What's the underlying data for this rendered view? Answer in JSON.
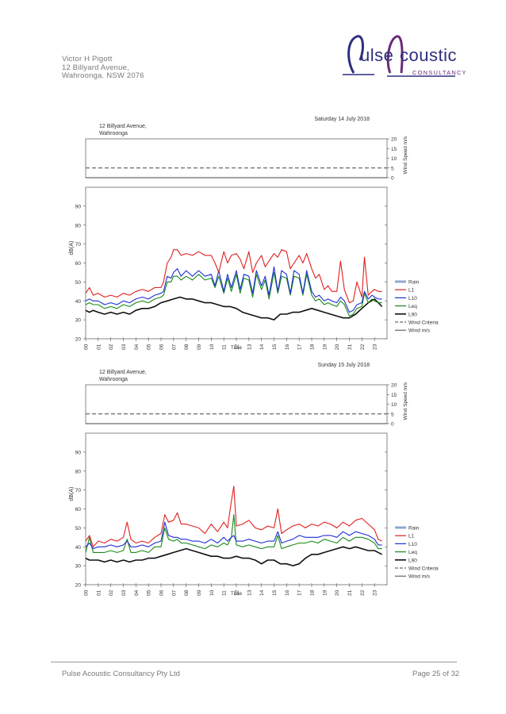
{
  "header": {
    "address_lines": [
      "Victor H Pigott",
      "12 Billyard Avenue,",
      "Wahroonga. NSW 2076"
    ],
    "logo_word1": "ulse",
    "logo_word2": "coustic",
    "logo_sub": "CONSULTANCY"
  },
  "footer": {
    "company": "Pulse Acoustic Consultancy Pty Ltd",
    "page": "Page 25 of 32"
  },
  "colors": {
    "rain": "#8fa8d0",
    "l1": "#e02020",
    "l10": "#1f2fd8",
    "leq": "#1a8a1a",
    "l90": "#111111",
    "wind_criteria": "#444444",
    "wind": "#444444"
  },
  "chart_data": [
    {
      "type": "line",
      "title": "Saturday 14 July 2018",
      "location": [
        "12 Billyard Avenue,",
        "Wahroonga"
      ],
      "xlabel": "Time",
      "ylabel": "dB(A)",
      "y2label": "Wind Speed m/s",
      "ylim": [
        20,
        100
      ],
      "yticks": [
        20,
        30,
        40,
        50,
        60,
        70,
        80,
        90
      ],
      "y2lim": [
        0,
        20
      ],
      "y2ticks": [
        0,
        5,
        10,
        15,
        20
      ],
      "xticks": [
        "00",
        "01",
        "02",
        "03",
        "04",
        "05",
        "06",
        "07",
        "08",
        "09",
        "10",
        "11",
        "12",
        "13",
        "14",
        "15",
        "16",
        "17",
        "18",
        "19",
        "20",
        "21",
        "22",
        "23"
      ],
      "wind_criteria": 5,
      "wind": 0,
      "legend": [
        "Rain",
        "L1",
        "L10",
        "Leq",
        "L90",
        "Wind Criteria",
        "Wind m/s"
      ],
      "series": [
        {
          "name": "L1",
          "x": [
            0,
            0.3,
            0.6,
            1,
            1.5,
            2,
            2.5,
            3,
            3.5,
            4,
            4.5,
            5,
            5.5,
            6,
            6.2,
            6.5,
            6.8,
            7,
            7.3,
            7.6,
            8,
            8.5,
            9,
            9.5,
            10,
            10.3,
            10.6,
            11,
            11.3,
            11.6,
            12,
            12.3,
            12.6,
            13,
            13.3,
            13.6,
            14,
            14.3,
            14.6,
            15,
            15.3,
            15.6,
            16,
            16.3,
            16.6,
            17,
            17.3,
            17.6,
            18,
            18.3,
            18.6,
            19,
            19.3,
            19.6,
            20,
            20.3,
            20.6,
            21,
            21.3,
            21.6,
            22,
            22.2,
            22.5,
            22.8,
            23,
            23.3,
            23.6
          ],
          "values": [
            44,
            47,
            43,
            44,
            42,
            43,
            42,
            44,
            43,
            45,
            46,
            45,
            47,
            47,
            50,
            60,
            63,
            67,
            67,
            64,
            65,
            64,
            66,
            64,
            64,
            60,
            55,
            66,
            60,
            64,
            65,
            62,
            57,
            66,
            55,
            60,
            64,
            58,
            61,
            65,
            63,
            67,
            66,
            57,
            60,
            64,
            60,
            65,
            57,
            52,
            54,
            46,
            48,
            45,
            45,
            61,
            46,
            39,
            40,
            50,
            42,
            63,
            43,
            45,
            46,
            45,
            45
          ]
        },
        {
          "name": "L10",
          "x": [
            0,
            0.3,
            0.6,
            1,
            1.5,
            2,
            2.5,
            3,
            3.5,
            4,
            4.5,
            5,
            5.5,
            6,
            6.2,
            6.5,
            6.8,
            7,
            7.3,
            7.6,
            8,
            8.5,
            9,
            9.5,
            10,
            10.3,
            10.6,
            11,
            11.3,
            11.6,
            12,
            12.3,
            12.6,
            13,
            13.3,
            13.6,
            14,
            14.3,
            14.6,
            15,
            15.3,
            15.6,
            16,
            16.3,
            16.6,
            17,
            17.3,
            17.6,
            18,
            18.3,
            18.6,
            19,
            19.3,
            19.6,
            20,
            20.3,
            20.6,
            21,
            21.3,
            21.6,
            22,
            22.2,
            22.5,
            22.8,
            23,
            23.3,
            23.6
          ],
          "values": [
            40,
            41,
            40,
            40,
            38,
            39,
            38,
            40,
            39,
            41,
            42,
            41,
            43,
            44,
            45,
            53,
            52,
            55,
            57,
            53,
            56,
            53,
            56,
            53,
            54,
            48,
            56,
            45,
            54,
            47,
            56,
            46,
            54,
            53,
            44,
            56,
            48,
            53,
            43,
            58,
            45,
            56,
            54,
            44,
            56,
            54,
            44,
            56,
            45,
            42,
            43,
            40,
            41,
            40,
            39,
            42,
            40,
            34,
            35,
            38,
            39,
            45,
            41,
            43,
            42,
            41,
            41
          ]
        },
        {
          "name": "Leq",
          "x": [
            0,
            0.3,
            0.6,
            1,
            1.5,
            2,
            2.5,
            3,
            3.5,
            4,
            4.5,
            5,
            5.5,
            6,
            6.2,
            6.5,
            6.8,
            7,
            7.3,
            7.6,
            8,
            8.5,
            9,
            9.5,
            10,
            10.3,
            10.6,
            11,
            11.3,
            11.6,
            12,
            12.3,
            12.6,
            13,
            13.3,
            13.6,
            14,
            14.3,
            14.6,
            15,
            15.3,
            15.6,
            16,
            16.3,
            16.6,
            17,
            17.3,
            17.6,
            18,
            18.3,
            18.6,
            19,
            19.3,
            19.6,
            20,
            20.3,
            20.6,
            21,
            21.3,
            21.6,
            22,
            22.2,
            22.5,
            22.8,
            23,
            23.3,
            23.6
          ],
          "values": [
            38,
            39,
            38,
            38,
            36,
            37,
            36,
            38,
            37,
            39,
            40,
            39,
            41,
            42,
            43,
            50,
            50,
            53,
            53,
            51,
            53,
            51,
            54,
            51,
            52,
            47,
            53,
            44,
            52,
            45,
            54,
            44,
            52,
            51,
            42,
            54,
            46,
            51,
            41,
            55,
            44,
            53,
            52,
            43,
            53,
            52,
            43,
            54,
            43,
            40,
            41,
            38,
            39,
            38,
            37,
            40,
            38,
            32,
            33,
            36,
            37,
            44,
            39,
            41,
            40,
            39,
            39
          ]
        },
        {
          "name": "L90",
          "x": [
            0,
            0.3,
            0.6,
            1,
            1.5,
            2,
            2.5,
            3,
            3.5,
            4,
            4.5,
            5,
            5.5,
            6,
            6.5,
            7,
            7.5,
            8,
            8.5,
            9,
            9.5,
            10,
            10.5,
            11,
            11.5,
            12,
            12.5,
            13,
            13.5,
            14,
            14.5,
            15,
            15.5,
            16,
            16.5,
            17,
            17.5,
            18,
            18.5,
            19,
            19.5,
            20,
            20.5,
            21,
            21.5,
            22,
            22.5,
            23,
            23.3,
            23.6
          ],
          "values": [
            35,
            34,
            35,
            34,
            33,
            34,
            33,
            34,
            33,
            35,
            36,
            36,
            37,
            39,
            40,
            41,
            42,
            41,
            41,
            40,
            39,
            39,
            38,
            37,
            37,
            36,
            34,
            33,
            32,
            31,
            31,
            30,
            33,
            33,
            34,
            34,
            35,
            36,
            35,
            34,
            33,
            32,
            31,
            31,
            33,
            36,
            39,
            41,
            39,
            37
          ]
        }
      ]
    },
    {
      "type": "line",
      "title": "Sunday 15 July 2018",
      "location": [
        "12 Billyard Avenue,",
        "Wahroonga"
      ],
      "xlabel": "Time",
      "ylabel": "dB(A)",
      "y2label": "Wind Speed m/s",
      "ylim": [
        20,
        100
      ],
      "yticks": [
        20,
        30,
        40,
        50,
        60,
        70,
        80,
        90
      ],
      "y2lim": [
        0,
        20
      ],
      "y2ticks": [
        0,
        5,
        10,
        15,
        20
      ],
      "xticks": [
        "00",
        "01",
        "02",
        "03",
        "04",
        "05",
        "06",
        "07",
        "08",
        "09",
        "10",
        "11",
        "12",
        "13",
        "14",
        "15",
        "16",
        "17",
        "18",
        "19",
        "20",
        "21",
        "22",
        "23"
      ],
      "wind_criteria": 5,
      "wind": 0,
      "legend": [
        "Rain",
        "L1",
        "L10",
        "Leq",
        "L90",
        "Wind Criteria",
        "Wind m/s"
      ],
      "series": [
        {
          "name": "L1",
          "x": [
            0,
            0.3,
            0.6,
            1,
            1.5,
            2,
            2.5,
            3,
            3.3,
            3.6,
            4,
            4.5,
            5,
            5.5,
            6,
            6.3,
            6.6,
            7,
            7.3,
            7.6,
            8,
            8.5,
            9,
            9.5,
            10,
            10.5,
            11,
            11.3,
            11.6,
            11.8,
            12,
            12.5,
            13,
            13.5,
            14,
            14.5,
            15,
            15.3,
            15.6,
            16,
            16.5,
            17,
            17.5,
            18,
            18.5,
            19,
            19.5,
            20,
            20.5,
            21,
            21.5,
            22,
            22.5,
            23,
            23.3,
            23.6
          ],
          "values": [
            43,
            46,
            40,
            43,
            42,
            44,
            43,
            45,
            53,
            44,
            42,
            43,
            42,
            45,
            47,
            57,
            53,
            54,
            58,
            52,
            52,
            51,
            50,
            47,
            52,
            48,
            53,
            50,
            64,
            72,
            51,
            52,
            54,
            50,
            49,
            51,
            50,
            60,
            47,
            49,
            51,
            52,
            50,
            52,
            51,
            53,
            52,
            50,
            53,
            51,
            54,
            55,
            52,
            49,
            44,
            43
          ]
        },
        {
          "name": "L10",
          "x": [
            0,
            0.3,
            0.6,
            1,
            1.5,
            2,
            2.5,
            3,
            3.3,
            3.6,
            4,
            4.5,
            5,
            5.5,
            6,
            6.3,
            6.6,
            7,
            7.3,
            7.6,
            8,
            8.5,
            9,
            9.5,
            10,
            10.5,
            11,
            11.3,
            11.6,
            11.8,
            12,
            12.5,
            13,
            13.5,
            14,
            14.5,
            15,
            15.3,
            15.6,
            16,
            16.5,
            17,
            17.5,
            18,
            18.5,
            19,
            19.5,
            20,
            20.5,
            21,
            21.5,
            22,
            22.5,
            23,
            23.3,
            23.6
          ],
          "values": [
            40,
            42,
            39,
            40,
            40,
            41,
            40,
            41,
            43,
            40,
            40,
            41,
            40,
            42,
            43,
            53,
            46,
            45,
            45,
            44,
            44,
            43,
            43,
            42,
            44,
            42,
            45,
            43,
            45,
            46,
            43,
            43,
            44,
            43,
            42,
            43,
            43,
            48,
            42,
            43,
            44,
            46,
            45,
            45,
            45,
            46,
            46,
            45,
            48,
            46,
            48,
            47,
            46,
            44,
            41,
            41
          ]
        },
        {
          "name": "Leq",
          "x": [
            0,
            0.3,
            0.6,
            1,
            1.5,
            2,
            2.5,
            3,
            3.3,
            3.6,
            4,
            4.5,
            5,
            5.5,
            6,
            6.3,
            6.6,
            7,
            7.3,
            7.6,
            8,
            8.5,
            9,
            9.5,
            10,
            10.5,
            11,
            11.3,
            11.6,
            11.8,
            12,
            12.5,
            13,
            13.5,
            14,
            14.5,
            15,
            15.3,
            15.6,
            16,
            16.5,
            17,
            17.5,
            18,
            18.5,
            19,
            19.5,
            20,
            20.5,
            21,
            21.5,
            22,
            22.5,
            23,
            23.3,
            23.6
          ],
          "values": [
            37,
            45,
            37,
            37,
            37,
            38,
            37,
            38,
            44,
            37,
            37,
            38,
            37,
            40,
            40,
            50,
            44,
            43,
            44,
            42,
            42,
            41,
            40,
            39,
            41,
            40,
            42,
            41,
            45,
            57,
            41,
            40,
            41,
            40,
            39,
            40,
            40,
            46,
            39,
            40,
            41,
            42,
            42,
            43,
            42,
            44,
            43,
            42,
            45,
            43,
            45,
            45,
            44,
            42,
            39,
            39
          ]
        },
        {
          "name": "L90",
          "x": [
            0,
            0.3,
            0.6,
            1,
            1.5,
            2,
            2.5,
            3,
            3.5,
            4,
            4.5,
            5,
            5.5,
            6,
            6.5,
            7,
            7.5,
            8,
            8.5,
            9,
            9.5,
            10,
            10.5,
            11,
            11.5,
            12,
            12.5,
            13,
            13.5,
            14,
            14.5,
            15,
            15.5,
            16,
            16.5,
            17,
            17.5,
            18,
            18.5,
            19,
            19.5,
            20,
            20.5,
            21,
            21.5,
            22,
            22.5,
            23,
            23.3,
            23.6
          ],
          "values": [
            34,
            33,
            33,
            33,
            32,
            33,
            32,
            33,
            32,
            33,
            33,
            34,
            34,
            35,
            36,
            37,
            38,
            39,
            38,
            37,
            36,
            35,
            35,
            34,
            34,
            35,
            34,
            34,
            33,
            31,
            33,
            33,
            31,
            31,
            30,
            31,
            34,
            36,
            36,
            37,
            38,
            39,
            40,
            39,
            40,
            39,
            38,
            38,
            37,
            36
          ]
        }
      ]
    }
  ]
}
